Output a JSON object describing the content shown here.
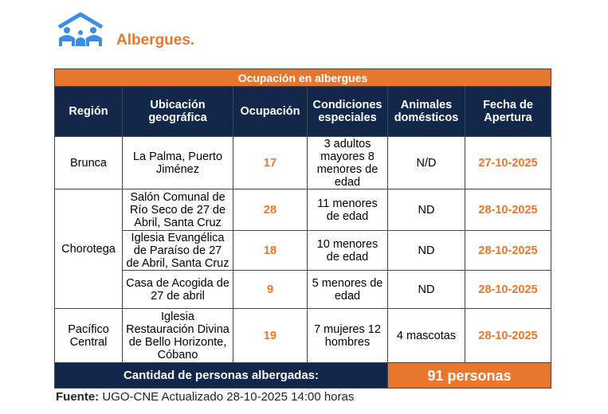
{
  "header": {
    "brand": "Albergues."
  },
  "table": {
    "title": "Ocupación en albergues",
    "columns": [
      "Región",
      "Ubicación geográfica",
      "Ocupación",
      "Condiciones especiales",
      "Animales domésticos",
      "Fecha de Apertura"
    ],
    "rows": [
      {
        "region": "Brunca",
        "ubicacion": "La Palma, Puerto Jiménez",
        "ocupacion": "17",
        "condiciones": "3 adultos mayores 8 menores de edad",
        "animales": "N/D",
        "fecha": "27-10-2025"
      },
      {
        "region": "Chorotega",
        "ubicacion": "Salón Comunal de Río Seco de 27 de Abril, Santa Cruz",
        "ocupacion": "28",
        "condiciones": "11 menores de edad",
        "animales": "ND",
        "fecha": "28-10-2025"
      },
      {
        "region": "Chorotega",
        "ubicacion": "Iglesia Evangélica de Paraíso de 27 de Abril, Santa Cruz",
        "ocupacion": "18",
        "condiciones": "10 menores de edad",
        "animales": "ND",
        "fecha": "28-10-2025"
      },
      {
        "region": "Chorotega",
        "ubicacion": "Casa de Acogida de 27 de abril",
        "ocupacion": "9",
        "condiciones": "5 menores de edad",
        "animales": "ND",
        "fecha": "28-10-2025"
      },
      {
        "region": "Pacífico Central",
        "ubicacion": "Iglesia Restauración Divina de Bello Horizonte, Cóbano",
        "ocupacion": "19",
        "condiciones": "7 mujeres 12 hombres",
        "animales": "4 mascotas",
        "fecha": "28-10-2025"
      }
    ],
    "total_label": "Cantidad de personas albergadas:",
    "total_value": "91 personas"
  },
  "footer": {
    "source_label": "Fuente:",
    "source_text": "UGO-CNE Actualizado 28-10-2025 14:00 horas"
  },
  "colors": {
    "accent": "#e8772e",
    "navy": "#12284a",
    "logo": "#3b8de0"
  }
}
